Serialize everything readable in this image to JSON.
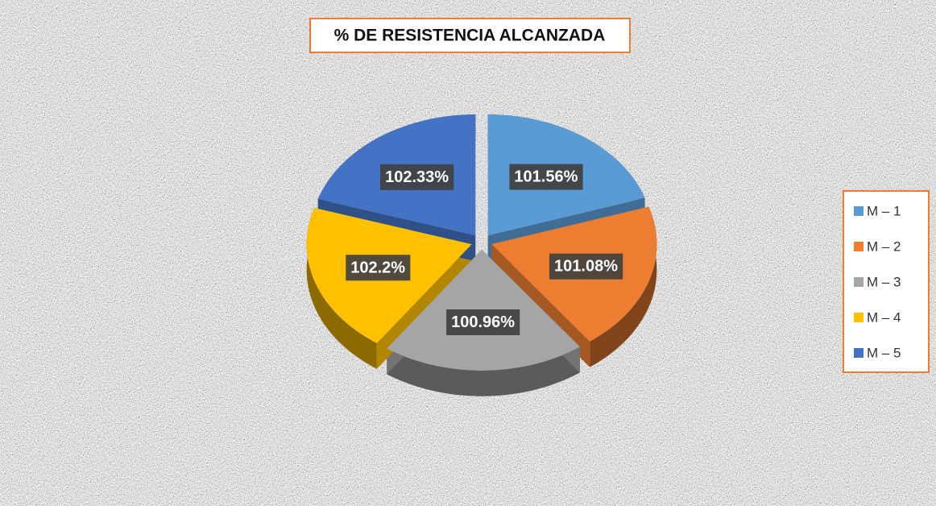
{
  "chart_data": {
    "type": "pie",
    "title": "% DE RESISTENCIA ALCANZADA",
    "categories": [
      "M – 1",
      "M – 2",
      "M – 3",
      "M – 4",
      "M – 5"
    ],
    "values": [
      101.56,
      101.08,
      100.96,
      102.2,
      102.33
    ],
    "value_labels": [
      "101.56%",
      "101.08%",
      "100.96%",
      "102.2%",
      "102.33%"
    ],
    "colors": [
      "#5b9bd5",
      "#ed7d31",
      "#a5a5a5",
      "#ffc000",
      "#4472c4"
    ],
    "legend": "right"
  }
}
